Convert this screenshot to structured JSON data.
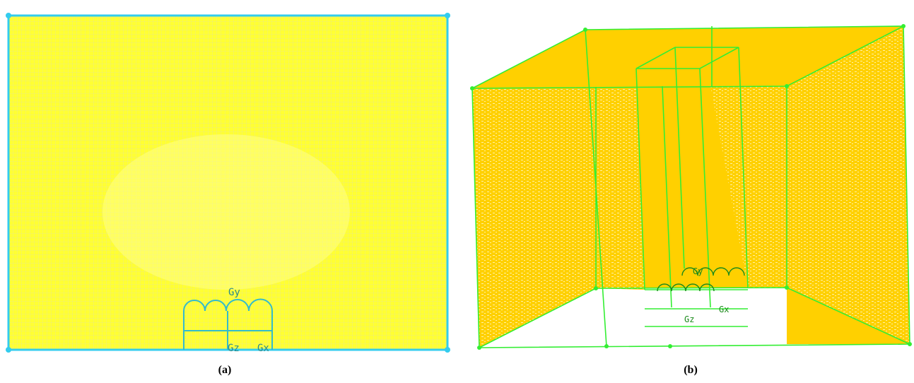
{
  "panels": [
    {
      "label": "(a)",
      "annotations": [
        "Gy",
        "Gz",
        "Gx"
      ]
    },
    {
      "label": "(b)",
      "annotations": [
        "Gy",
        "Gz",
        "Gx"
      ]
    }
  ]
}
